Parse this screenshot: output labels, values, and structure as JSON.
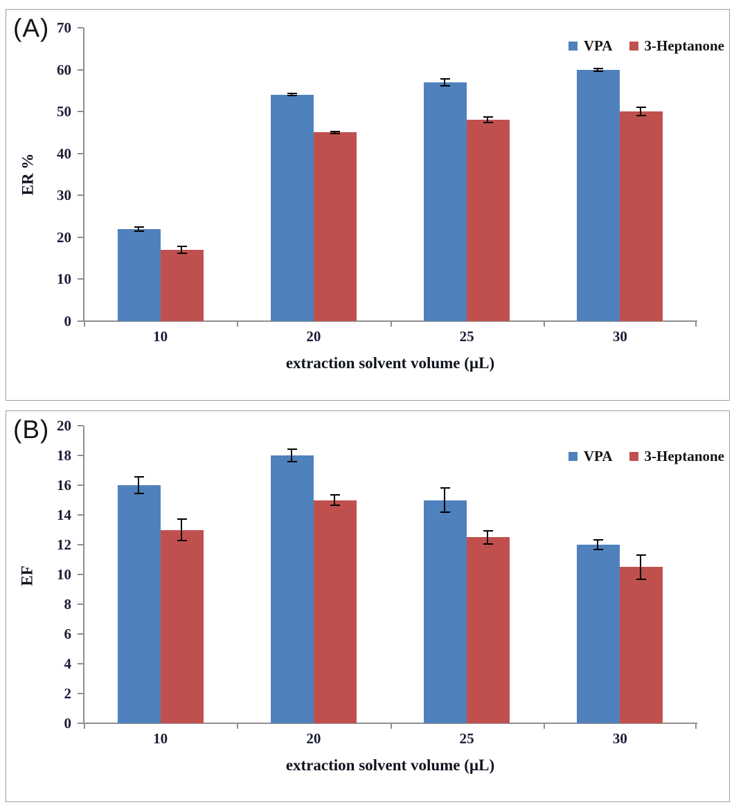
{
  "figure": {
    "background": "#ffffff",
    "panel_border_color": "#9e9e9e",
    "axis_line_color": "#8f8f8f",
    "error_bar_color": "#000000",
    "tick_text_color": "#1a1d36"
  },
  "chart_data": [
    {
      "type": "bar",
      "panel_label": "(A)",
      "title": "",
      "ylabel": "ER %",
      "xlabel": "extraction solvent volume (µL)",
      "ylim": [
        0,
        70
      ],
      "ytick_step": 10,
      "grid": false,
      "legend_position": "top-right",
      "categories": [
        "10",
        "20",
        "25",
        "30"
      ],
      "series": [
        {
          "name": "VPA",
          "color": "#4f81bd",
          "values": [
            22,
            54,
            57,
            60
          ],
          "errors": [
            0.7,
            0.4,
            1.0,
            0.5
          ]
        },
        {
          "name": "3-Heptanone",
          "color": "#c0504d",
          "values": [
            17,
            45,
            48,
            50
          ],
          "errors": [
            1.0,
            0.45,
            0.8,
            1.2
          ]
        }
      ]
    },
    {
      "type": "bar",
      "panel_label": "(B)",
      "title": "",
      "ylabel": "EF",
      "xlabel": "extraction solvent volume (µL)",
      "ylim": [
        0,
        20
      ],
      "ytick_step": 2,
      "grid": false,
      "legend_position": "top-right",
      "categories": [
        "10",
        "20",
        "25",
        "30"
      ],
      "series": [
        {
          "name": "VPA",
          "color": "#4f81bd",
          "values": [
            16,
            18,
            15,
            12
          ],
          "errors": [
            0.6,
            0.45,
            0.85,
            0.35
          ]
        },
        {
          "name": "3-Heptanone",
          "color": "#c0504d",
          "values": [
            13,
            15,
            12.5,
            10.5
          ],
          "errors": [
            0.75,
            0.4,
            0.5,
            0.85
          ]
        }
      ]
    }
  ]
}
